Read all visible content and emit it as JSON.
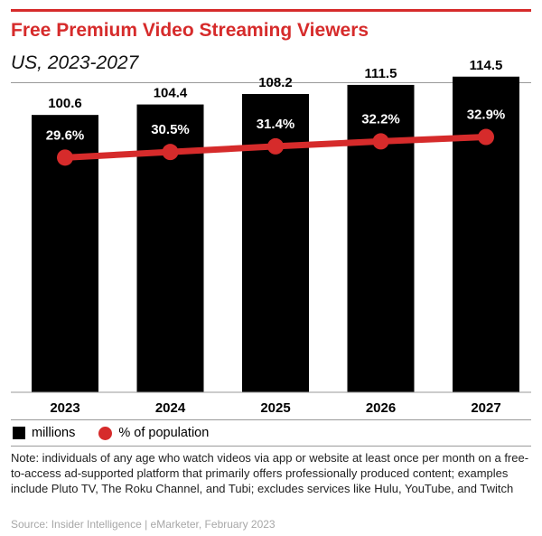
{
  "chart_data": {
    "type": "bar",
    "title": "Free Premium Video Streaming Viewers",
    "subtitle": "US, 2023-2027",
    "categories": [
      "2023",
      "2024",
      "2025",
      "2026",
      "2027"
    ],
    "series": [
      {
        "name": "millions",
        "type": "bar",
        "values": [
          100.6,
          104.4,
          108.2,
          111.5,
          114.5
        ],
        "labels": [
          "100.6",
          "104.4",
          "108.2",
          "111.5",
          "114.5"
        ],
        "color": "#000000"
      },
      {
        "name": "% of population",
        "type": "line",
        "values": [
          29.6,
          30.5,
          31.4,
          32.2,
          32.9
        ],
        "labels": [
          "29.6%",
          "30.5%",
          "31.4%",
          "32.2%",
          "32.9%"
        ],
        "color": "#d62b2b"
      }
    ],
    "xlabel": "",
    "ylabel": "",
    "ylim": [
      0,
      120
    ],
    "y2lim": [
      -8,
      45
    ],
    "grid": false,
    "legend": "bottom-left"
  },
  "legend": {
    "millions": "millions",
    "population": "% of population"
  },
  "footer": {
    "note": "Note: individuals of any age who watch videos via app or website at least once per month on a free-to-access ad-supported platform that primarily offers professionally produced content; examples include Pluto TV, The Roku Channel, and Tubi; excludes services like Hulu, YouTube, and Twitch",
    "source": "Source: Insider Intelligence | eMarketer, February 2023"
  },
  "colors": {
    "accent": "#d62b2b",
    "bar": "#000000",
    "separator": "#9a9a9a",
    "source_text": "#a7a7a7"
  }
}
